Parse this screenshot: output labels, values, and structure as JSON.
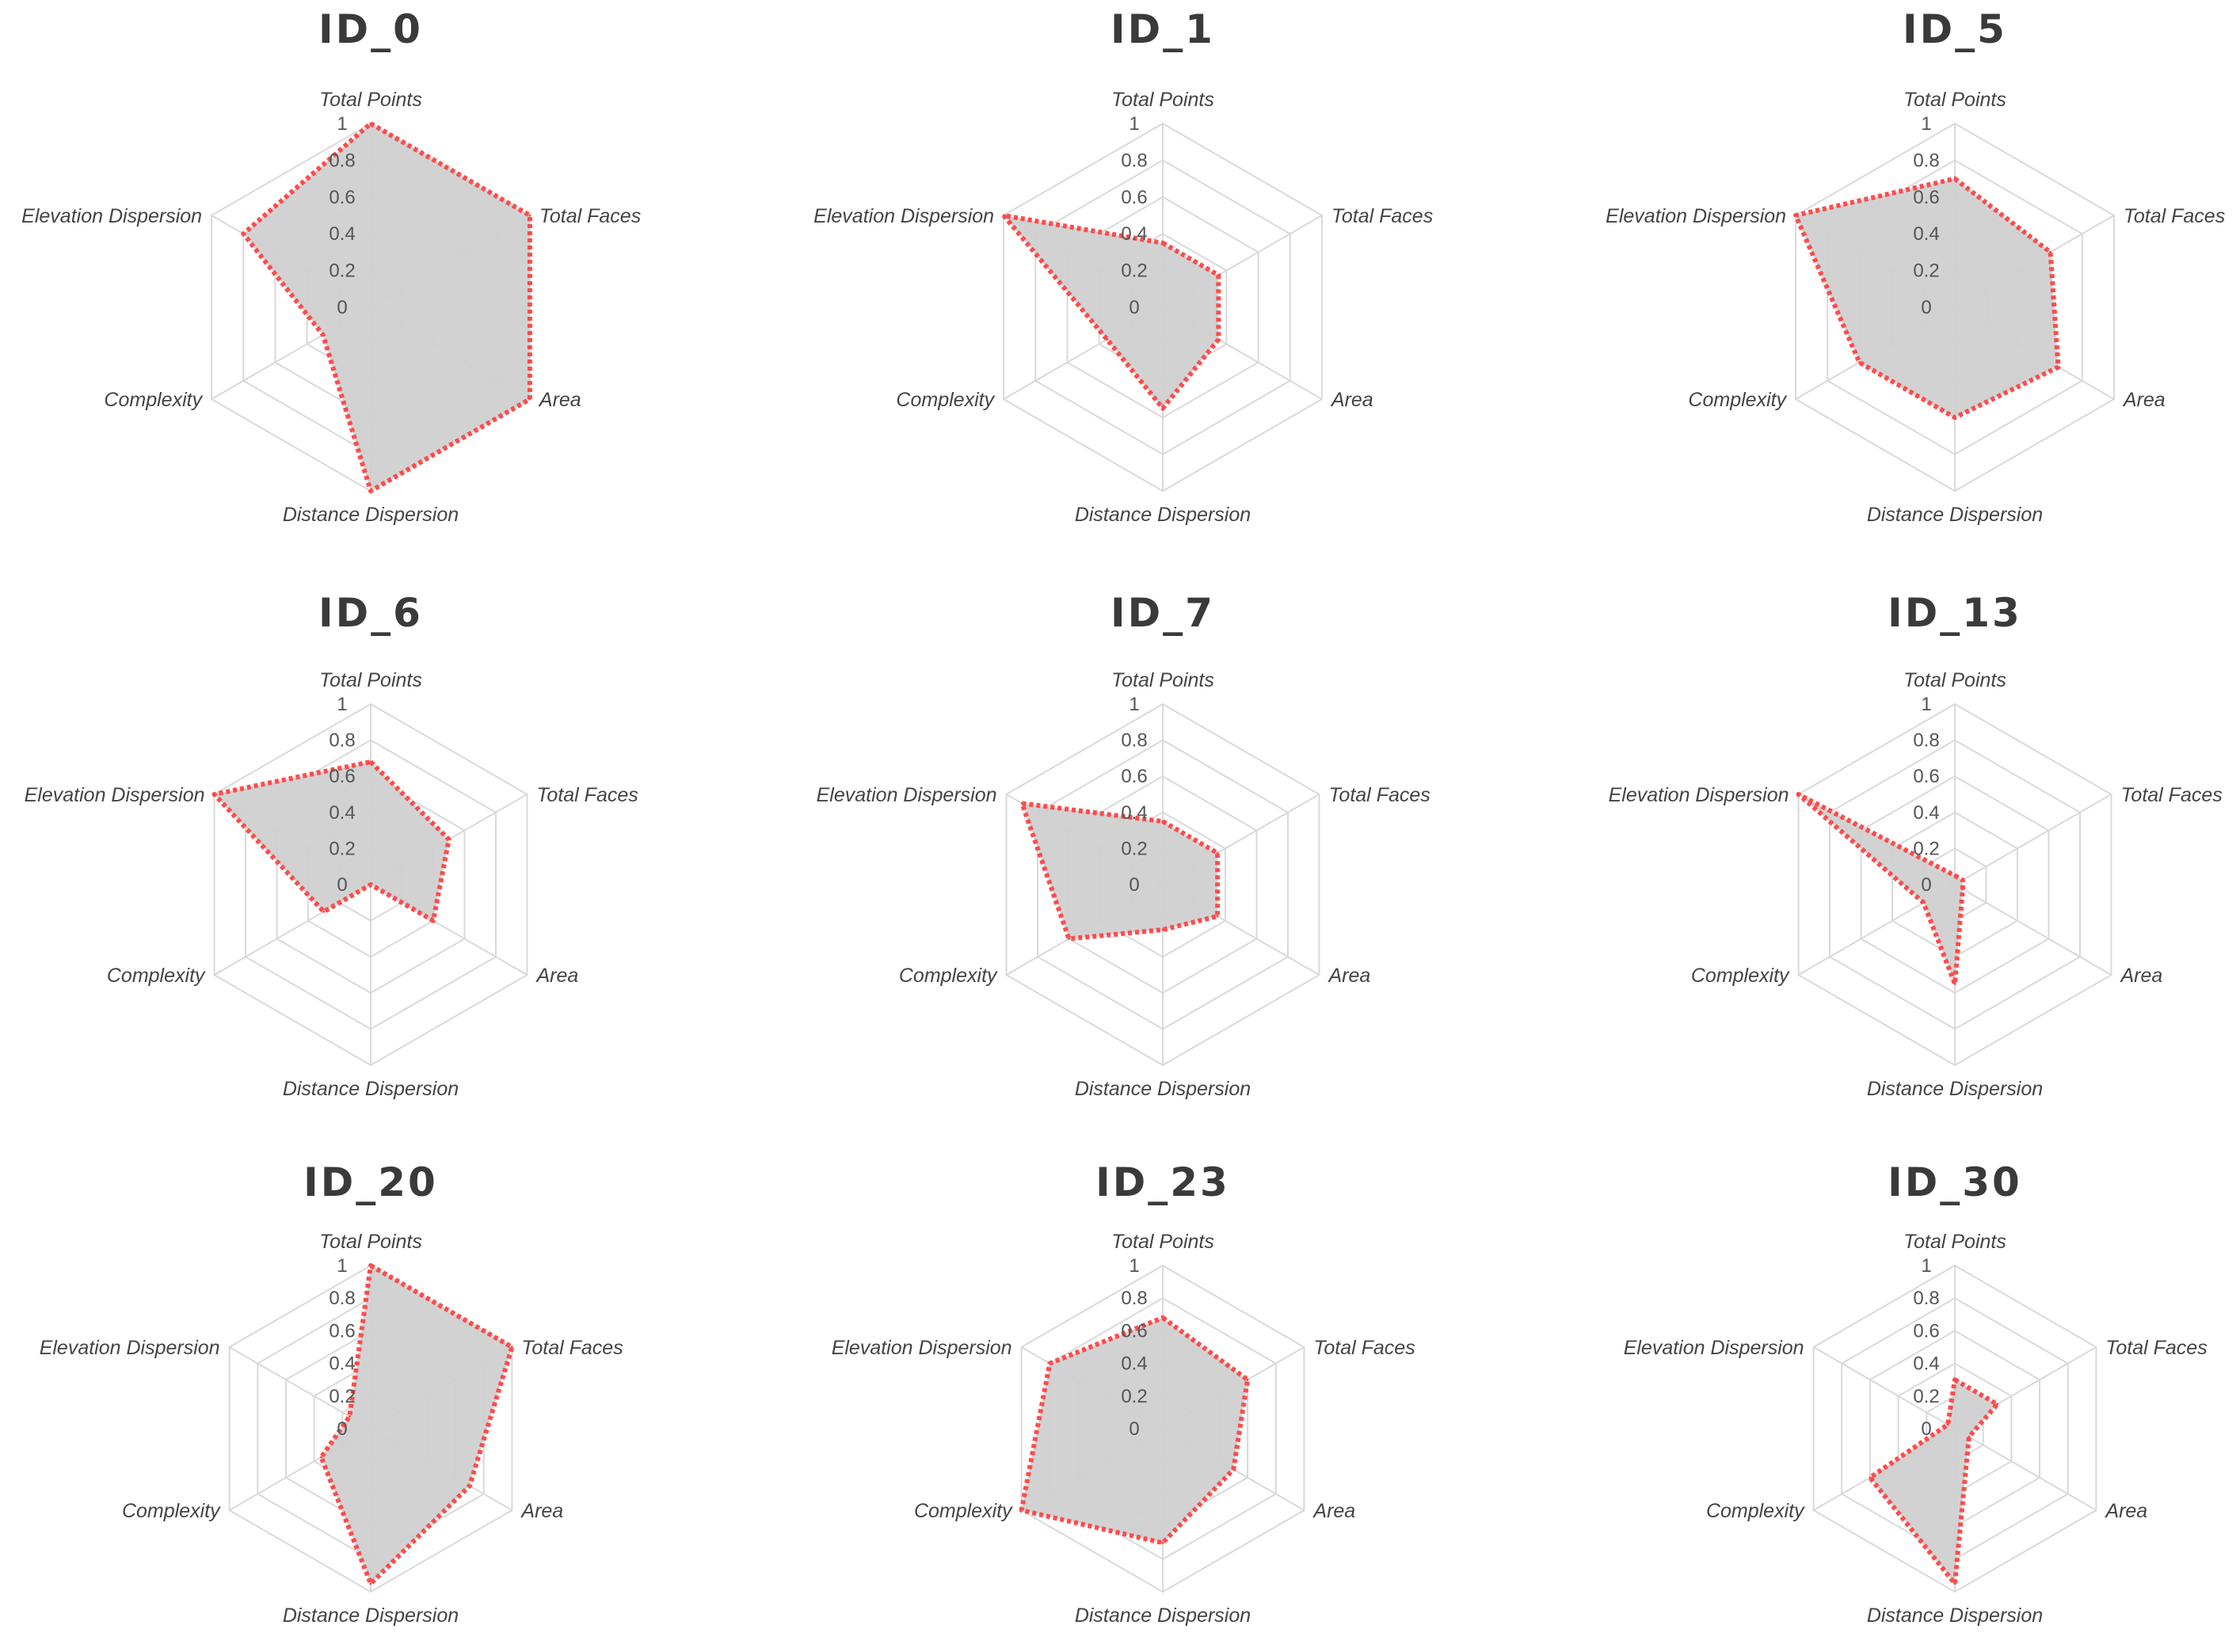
{
  "chart_data": {
    "type": "radar",
    "axes": [
      "Total Points",
      "Total Faces",
      "Area",
      "Distance Dispersion",
      "Complexity",
      "Elevation Dispersion"
    ],
    "ticks": [
      "0",
      "0.2",
      "0.4",
      "0.6",
      "0.8",
      "1"
    ],
    "range": [
      0,
      1
    ],
    "line_style": "red-dotted",
    "fill_color": "#d0d0d0",
    "line_color": "#ff4b4b",
    "charts": [
      {
        "title": "ID_0",
        "values": [
          1.0,
          1.0,
          1.0,
          1.0,
          0.3,
          0.8
        ]
      },
      {
        "title": "ID_1",
        "values": [
          0.35,
          0.35,
          0.35,
          0.55,
          0.35,
          1.0
        ]
      },
      {
        "title": "ID_5",
        "values": [
          0.7,
          0.6,
          0.65,
          0.6,
          0.6,
          1.0
        ]
      },
      {
        "title": "ID_6",
        "values": [
          0.68,
          0.5,
          0.4,
          0.0,
          0.3,
          1.0
        ]
      },
      {
        "title": "ID_7",
        "values": [
          0.35,
          0.35,
          0.35,
          0.25,
          0.6,
          0.9
        ]
      },
      {
        "title": "ID_13",
        "values": [
          0.05,
          0.05,
          0.05,
          0.55,
          0.2,
          1.0
        ]
      },
      {
        "title": "ID_20",
        "values": [
          1.0,
          1.0,
          0.7,
          0.95,
          0.35,
          0.15
        ]
      },
      {
        "title": "ID_23",
        "values": [
          0.68,
          0.6,
          0.5,
          0.7,
          1.0,
          0.8
        ]
      },
      {
        "title": "ID_30",
        "values": [
          0.3,
          0.3,
          0.1,
          0.95,
          0.6,
          0.05
        ]
      }
    ]
  }
}
